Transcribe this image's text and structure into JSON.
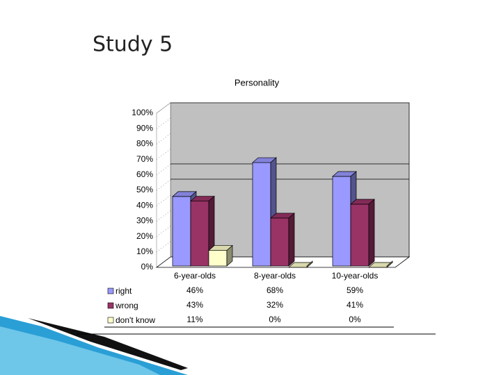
{
  "slide_title": "Study 5",
  "chart_data": {
    "type": "bar3d",
    "title": "Personality",
    "categories": [
      "6-year-olds",
      "8-year-olds",
      "10-year-olds"
    ],
    "series": [
      {
        "name": "right",
        "color": "#9999ff",
        "values": [
          46,
          68,
          59
        ],
        "value_labels": [
          "46%",
          "68%",
          "59%"
        ]
      },
      {
        "name": "wrong",
        "color": "#993366",
        "values": [
          43,
          32,
          41
        ],
        "value_labels": [
          "43%",
          "32%",
          "41%"
        ]
      },
      {
        "name": "don't know",
        "color": "#ffffcc",
        "values": [
          11,
          0,
          0
        ],
        "value_labels": [
          "11%",
          "0%",
          "0%"
        ]
      }
    ],
    "ylim": [
      0,
      100
    ],
    "yticks": [
      {
        "value": 0,
        "label": "0%"
      },
      {
        "value": 10,
        "label": "10%"
      },
      {
        "value": 20,
        "label": "20%"
      },
      {
        "value": 30,
        "label": "30%"
      },
      {
        "value": 40,
        "label": "40%"
      },
      {
        "value": 50,
        "label": "50%"
      },
      {
        "value": 60,
        "label": "60%"
      },
      {
        "value": 70,
        "label": "70%"
      },
      {
        "value": 80,
        "label": "80%"
      },
      {
        "value": 90,
        "label": "90%"
      },
      {
        "value": 100,
        "label": "100%"
      }
    ]
  }
}
